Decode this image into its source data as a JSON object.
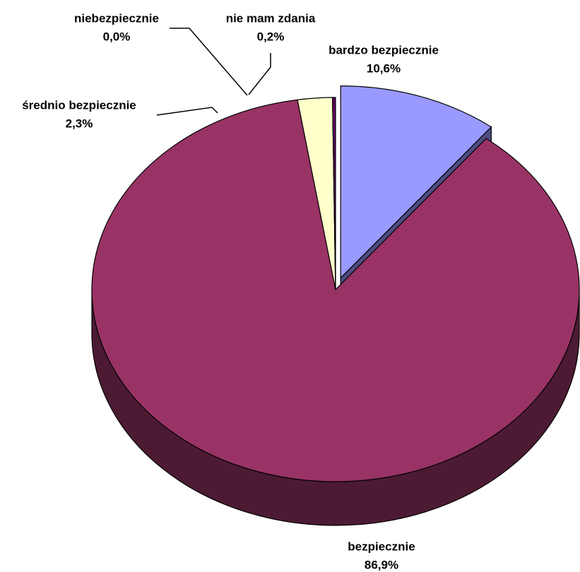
{
  "chart_data": {
    "type": "pie",
    "categories": [
      "bardzo bezpiecznie",
      "bezpiecznie",
      "średnio bezpiecznie",
      "niebezpiecznie",
      "nie mam zdania"
    ],
    "values": [
      10.6,
      86.9,
      2.3,
      0.0,
      0.2
    ],
    "value_labels": [
      "10,6%",
      "86,9%",
      "2,3%",
      "0,0%",
      "0,2%"
    ],
    "colors": [
      "#9999ff",
      "#993366",
      "#ffffcc",
      "#ccffff",
      "#660066"
    ]
  }
}
